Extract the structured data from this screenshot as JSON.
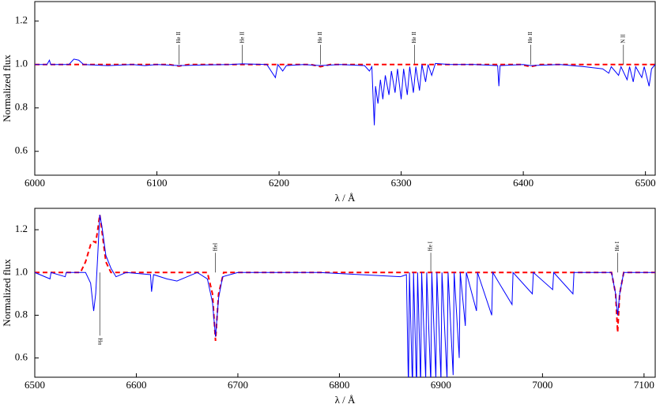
{
  "chart_data": [
    {
      "type": "line",
      "xlabel": "λ / Å",
      "ylabel": "Normalized flux",
      "xlim": [
        6000,
        6508
      ],
      "ylim": [
        0.49,
        1.29
      ],
      "xticks": [
        6000,
        6100,
        6200,
        6300,
        6400,
        6500
      ],
      "yticks": [
        0.6,
        0.8,
        {
          "value": 1,
          "label": "1.0"
        },
        1.2
      ],
      "series": [
        {
          "color": "#0000ff",
          "dash": false,
          "x": [
            6000,
            6010,
            6012,
            6013,
            6028,
            6032,
            6036,
            6040,
            6060,
            6080,
            6090,
            6100,
            6118,
            6140,
            6160,
            6170,
            6190,
            6197,
            6199,
            6203,
            6206,
            6220,
            6234,
            6250,
            6270,
            6274,
            6276,
            6277,
            6278,
            6279,
            6281,
            6283,
            6285,
            6287,
            6290,
            6292,
            6295,
            6297,
            6300,
            6302,
            6305,
            6307,
            6310,
            6312,
            6315,
            6317,
            6320,
            6322,
            6325,
            6328,
            6340,
            6360,
            6379,
            6380,
            6381,
            6400,
            6406,
            6430,
            6450,
            6465,
            6470,
            6472,
            6478,
            6480,
            6485,
            6487,
            6490,
            6492,
            6497,
            6499,
            6503,
            6505,
            6508
          ],
          "values": [
            1.0,
            1.0,
            1.02,
            1.0,
            1.0,
            1.025,
            1.02,
            1.0,
            0.995,
            1.0,
            0.995,
            1.0,
            0.995,
            0.998,
            1.0,
            1.003,
            1.0,
            0.94,
            1.0,
            0.97,
            0.995,
            1.0,
            0.995,
            1.0,
            0.995,
            0.97,
            0.99,
            0.85,
            0.72,
            0.9,
            0.82,
            0.93,
            0.84,
            0.95,
            0.86,
            0.97,
            0.87,
            0.98,
            0.84,
            0.98,
            0.86,
            0.99,
            0.87,
            0.99,
            0.88,
            1.0,
            0.92,
            1.0,
            0.95,
            1.005,
            1.0,
            1.0,
            0.995,
            0.9,
            0.995,
            1.0,
            0.995,
            1.0,
            0.99,
            0.98,
            0.96,
            0.99,
            0.95,
            0.99,
            0.93,
            0.99,
            0.92,
            0.99,
            0.94,
            0.99,
            0.9,
            0.98,
            1.0
          ]
        },
        {
          "color": "#ff0000",
          "dash": true,
          "x": [
            6000,
            6110,
            6118,
            6126,
            6226,
            6234,
            6242,
            6398,
            6406,
            6414,
            6508
          ],
          "values": [
            1,
            1,
            0.993,
            1,
            1,
            0.99,
            1,
            1,
            0.99,
            1,
            1
          ]
        }
      ],
      "annotations": [
        {
          "text": "He II",
          "x": 6118,
          "position": "above"
        },
        {
          "text": "He II",
          "x": 6170,
          "position": "above"
        },
        {
          "text": "He II",
          "x": 6234,
          "position": "above"
        },
        {
          "text": "He II",
          "x": 6311,
          "position": "above"
        },
        {
          "text": "He II",
          "x": 6406,
          "position": "above"
        },
        {
          "text": "N II",
          "x": 6482,
          "position": "above"
        }
      ]
    },
    {
      "type": "line",
      "xlabel": "λ / Å",
      "ylabel": "Normalized flux",
      "xlim": [
        6500,
        7111
      ],
      "ylim": [
        0.51,
        1.3
      ],
      "xticks": [
        6500,
        6600,
        6700,
        6800,
        6900,
        7000,
        7100
      ],
      "yticks": [
        0.6,
        0.8,
        {
          "value": 1,
          "label": "1.0"
        },
        1.2
      ],
      "series": [
        {
          "color": "#0000ff",
          "dash": false,
          "x": [
            6500,
            6515,
            6516,
            6530,
            6531,
            6545,
            6550,
            6555,
            6558,
            6560,
            6562,
            6564,
            6566,
            6570,
            6575,
            6580,
            6590,
            6614,
            6615,
            6617,
            6630,
            6640,
            6650,
            6660,
            6670,
            6675,
            6678,
            6681,
            6685,
            6700,
            6780,
            6860,
            6866,
            6868,
            6869,
            6872,
            6873,
            6876,
            6877,
            6880,
            6881,
            6885,
            6886,
            6890,
            6891,
            6895,
            6896,
            6900,
            6901,
            6906,
            6907,
            6912,
            6913,
            6918,
            6919,
            6924,
            6925,
            6935,
            6936,
            6950,
            6951,
            6970,
            6971,
            6990,
            6991,
            7010,
            7011,
            7030,
            7031,
            7068,
            7072,
            7074,
            7076,
            7080,
            7090,
            7111
          ],
          "values": [
            1.0,
            0.97,
            1.0,
            0.98,
            1.0,
            1.0,
            1.0,
            0.95,
            0.82,
            0.9,
            1.08,
            1.27,
            1.22,
            1.08,
            1.02,
            0.98,
            1.0,
            0.99,
            0.91,
            0.99,
            0.97,
            0.96,
            0.98,
            1.0,
            0.97,
            0.86,
            0.7,
            0.88,
            0.98,
            1.0,
            1.0,
            0.98,
            0.99,
            0.45,
            1.0,
            0.45,
            1.0,
            0.45,
            1.0,
            0.47,
            1.0,
            0.5,
            1.0,
            0.48,
            1.0,
            0.5,
            1.0,
            0.5,
            1.0,
            0.5,
            1.0,
            0.52,
            1.0,
            0.6,
            1.0,
            0.75,
            1.0,
            0.82,
            1.0,
            0.8,
            1.0,
            0.85,
            1.0,
            0.9,
            1.0,
            0.92,
            1.0,
            0.9,
            1.0,
            1.0,
            0.9,
            0.8,
            0.9,
            1.0,
            1.0,
            1.0
          ]
        },
        {
          "color": "#ff0000",
          "dash": true,
          "x": [
            6500,
            6545,
            6550,
            6555,
            6558,
            6560,
            6562,
            6564,
            6566,
            6570,
            6575,
            6670,
            6675,
            6678,
            6681,
            6686,
            7068,
            7072,
            7074,
            7076,
            7080,
            7111
          ],
          "values": [
            1,
            1,
            1.05,
            1.13,
            1.145,
            1.14,
            1.2,
            1.27,
            1.2,
            1.05,
            1,
            1,
            0.9,
            0.68,
            0.9,
            1,
            1,
            0.9,
            0.72,
            0.9,
            1,
            1
          ]
        }
      ],
      "annotations": [
        {
          "text": "Hα",
          "x": 6564,
          "position": "below"
        },
        {
          "text": "HeI",
          "x": 6678,
          "position": "above"
        },
        {
          "text": "He I",
          "x": 6890,
          "position": "above"
        },
        {
          "text": "He I",
          "x": 7074,
          "position": "above"
        }
      ]
    }
  ]
}
